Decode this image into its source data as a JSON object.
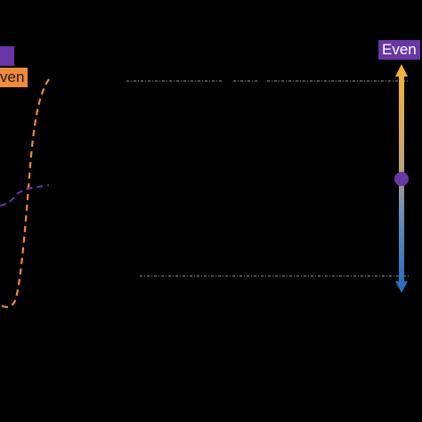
{
  "labels": {
    "left_purple": "",
    "left_orange": "ven",
    "right_even": "Even"
  },
  "colors": {
    "background": "#000000",
    "purple": "#6a37a6",
    "orange": "#f08a3c",
    "arrow_top": "#f5b03a",
    "arrow_bottom": "#2a6fc0",
    "dotted_line": "#9a9a9a"
  },
  "icons": {
    "slider_handle": "purple-circle-handle",
    "arrow_up": "arrow-up-icon",
    "arrow_down": "arrow-down-icon"
  }
}
